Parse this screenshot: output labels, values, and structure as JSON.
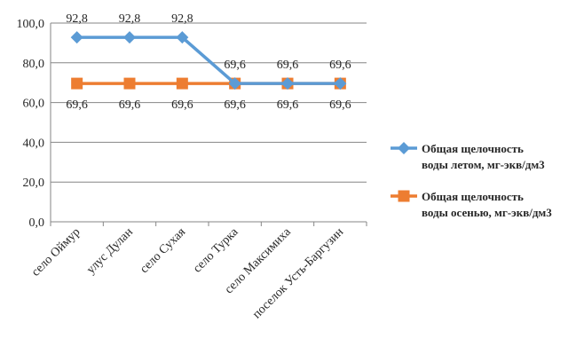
{
  "chart_data": {
    "type": "line",
    "categories": [
      "село Оймур",
      "улус Дулан",
      "село Сухая",
      "село Турка",
      "село Максимиха",
      "поселок Усть-Баргузин"
    ],
    "series": [
      {
        "name": "Общая щелочность воды летом, мг-экв/дм3",
        "name_lines": [
          "Общая щелочность",
          "воды летом, мг-экв/дм3"
        ],
        "values": [
          92.8,
          92.8,
          92.8,
          69.6,
          69.6,
          69.6
        ],
        "labels": [
          "92,8",
          "92,8",
          "92,8",
          "69,6",
          "69,6",
          "69,6"
        ],
        "color": "#5b9bd5",
        "marker": "diamond"
      },
      {
        "name": "Общая щелочность воды осенью, мг-экв/дм3",
        "name_lines": [
          "Общая щелочность",
          "воды осенью, мг-экв/дм3"
        ],
        "values": [
          69.6,
          69.6,
          69.6,
          69.6,
          69.6,
          69.6
        ],
        "labels": [
          "69,6",
          "69,6",
          "69,6",
          "69,6",
          "69,6",
          "69,6"
        ],
        "color": "#ed7d31",
        "marker": "square"
      }
    ],
    "y_ticks": [
      0,
      20,
      40,
      60,
      80,
      100
    ],
    "y_tick_labels": [
      "0,0",
      "20,0",
      "40,0",
      "60,0",
      "80,0",
      "100,0"
    ],
    "ylim": [
      0,
      100
    ],
    "grid": true,
    "legend_position": "right",
    "axis_color": "#868686",
    "grid_color": "#868686",
    "text_color": "#262626"
  }
}
